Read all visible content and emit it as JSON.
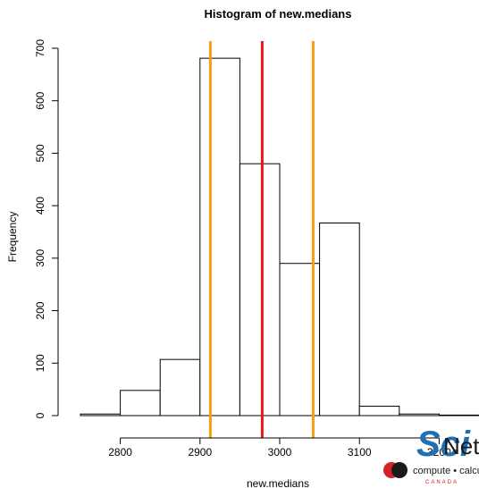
{
  "chart_data": {
    "type": "bar",
    "title": "Histogram of new.medians",
    "xlabel": "new.medians",
    "ylabel": "Frequency",
    "bins": [
      {
        "from": 2750,
        "to": 2800,
        "count": 3
      },
      {
        "from": 2800,
        "to": 2850,
        "count": 48
      },
      {
        "from": 2850,
        "to": 2900,
        "count": 107
      },
      {
        "from": 2900,
        "to": 2950,
        "count": 681
      },
      {
        "from": 2950,
        "to": 3000,
        "count": 480
      },
      {
        "from": 3000,
        "to": 3050,
        "count": 290
      },
      {
        "from": 3050,
        "to": 3100,
        "count": 367
      },
      {
        "from": 3100,
        "to": 3150,
        "count": 18
      },
      {
        "from": 3150,
        "to": 3200,
        "count": 3
      },
      {
        "from": 3200,
        "to": 3250,
        "count": 1
      }
    ],
    "xticks": [
      2800,
      2900,
      3000,
      3100,
      3200
    ],
    "xtick_labels": [
      "2800",
      "2900",
      "3000",
      "3100",
      "3200"
    ],
    "yticks": [
      0,
      100,
      200,
      300,
      400,
      500,
      600,
      700
    ],
    "ytick_labels": [
      "0",
      "100",
      "200",
      "300",
      "400",
      "500",
      "600",
      "700"
    ],
    "xlim": [
      2750,
      3250
    ],
    "ylim": [
      0,
      700
    ],
    "vlines": [
      {
        "x": 2978,
        "color": "#e8141c",
        "role": "median"
      },
      {
        "x": 2913,
        "color": "#f5a00e",
        "role": "lower"
      },
      {
        "x": 3042,
        "color": "#f5a00e",
        "role": "upper"
      }
    ],
    "grid": false,
    "bar_fill": "#ffffff",
    "bar_stroke": "#000000"
  },
  "logo": {
    "wordmark_prefix": "Sci",
    "wordmark_suffix": "Net",
    "tagline": "compute • calcul",
    "country": "CANADA",
    "colors": {
      "blue": "#1f6fb5",
      "red": "#d42027",
      "dark": "#1a1a1a"
    }
  }
}
